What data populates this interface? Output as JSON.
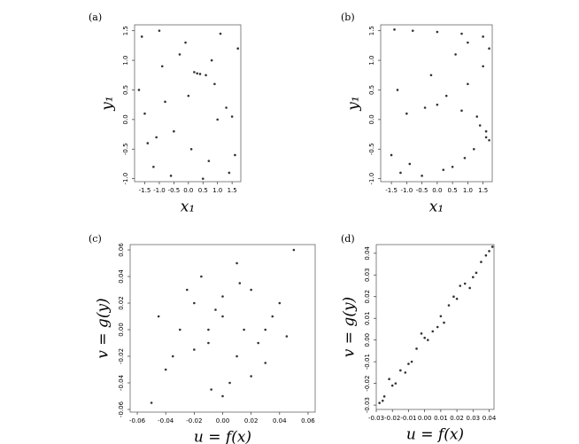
{
  "chart_data": [
    {
      "type": "scatter",
      "label": "(a)",
      "xlabel": "x₁",
      "ylabel": "y₁",
      "xlim": [
        -1.85,
        1.8
      ],
      "ylim": [
        -1.05,
        1.6
      ],
      "xticks": [
        -1.5,
        {
          "value": -1,
          "label": "-1.0"
        },
        -0.5,
        {
          "value": 0,
          "label": "0.0"
        },
        0.5,
        {
          "value": 1,
          "label": "1.0"
        },
        1.5
      ],
      "yticks": [
        {
          "value": -1,
          "label": "-1.0"
        },
        -0.5,
        {
          "value": 0,
          "label": "0.0"
        },
        0.5,
        {
          "value": 1,
          "label": "1.0"
        },
        1.5
      ],
      "color": "#333333",
      "x": [
        -1.6,
        -1.2,
        -0.8,
        -0.3,
        0.1,
        0.6,
        1.0,
        1.4,
        1.7,
        -1.7,
        -1.0,
        -0.5,
        0.2,
        0.5,
        0.9,
        1.3,
        -1.4,
        -0.1,
        0.4,
        1.6,
        -0.9,
        0.7,
        -1.5,
        0.0,
        1.1,
        -0.6,
        0.3,
        1.5,
        -1.1,
        0.8
      ],
      "y": [
        1.4,
        -0.8,
        0.3,
        1.1,
        -0.5,
        0.75,
        0.0,
        -0.9,
        1.2,
        0.5,
        1.5,
        -0.2,
        0.8,
        -1.0,
        0.6,
        0.2,
        -0.4,
        1.3,
        0.77,
        -0.6,
        0.9,
        -0.7,
        0.1,
        0.4,
        1.45,
        -0.95,
        0.78,
        0.05,
        -0.3,
        1.0
      ]
    },
    {
      "type": "scatter",
      "label": "(b)",
      "xlabel": "x₁",
      "ylabel": "y₁",
      "xlim": [
        -1.85,
        1.8
      ],
      "ylim": [
        -1.05,
        1.6
      ],
      "xticks": [
        -1.5,
        {
          "value": -1,
          "label": "-1.0"
        },
        -0.5,
        {
          "value": 0,
          "label": "0.0"
        },
        0.5,
        {
          "value": 1,
          "label": "1.0"
        },
        1.5
      ],
      "yticks": [
        {
          "value": -1,
          "label": "-1.0"
        },
        -0.5,
        {
          "value": 0,
          "label": "0.0"
        },
        0.5,
        {
          "value": 1,
          "label": "1.0"
        },
        1.5
      ],
      "color": "#333333",
      "x": [
        -1.4,
        -0.8,
        0.0,
        0.8,
        1.5,
        1.7,
        1.5,
        1.0,
        0.3,
        -0.4,
        1.6,
        1.2,
        0.5,
        -0.5,
        -1.2,
        1.7,
        1.4,
        0.8,
        0.0,
        -1.0,
        -1.5,
        1.0,
        0.6,
        -0.2,
        -1.3,
        1.6,
        0.9,
        0.2,
        -0.9,
        1.3
      ],
      "y": [
        1.52,
        1.5,
        1.48,
        1.45,
        1.4,
        1.2,
        0.9,
        0.6,
        0.4,
        0.2,
        -0.2,
        -0.5,
        -0.8,
        -0.95,
        -0.9,
        -0.35,
        -0.1,
        0.15,
        0.25,
        0.1,
        -0.6,
        1.3,
        1.1,
        0.75,
        0.5,
        -0.3,
        -0.65,
        -0.85,
        -0.75,
        0.05
      ]
    },
    {
      "type": "scatter",
      "label": "(c)",
      "xlabel": "u = f(x)",
      "ylabel": "v = g(y)",
      "xlim": [
        -0.065,
        0.065
      ],
      "ylim": [
        -0.062,
        0.064
      ],
      "xticks": [
        -0.06,
        -0.04,
        -0.02,
        {
          "value": 0,
          "label": "0.00"
        },
        0.02,
        0.04,
        0.06
      ],
      "yticks": [
        -0.06,
        -0.04,
        -0.02,
        {
          "value": 0,
          "label": "0.00"
        },
        0.02,
        0.04,
        0.06
      ],
      "color": "#333333",
      "x": [
        -0.03,
        -0.02,
        -0.01,
        0.0,
        0.01,
        0.02,
        0.03,
        -0.04,
        0.04,
        -0.015,
        0.005,
        0.015,
        -0.005,
        0.025,
        -0.025,
        0.0,
        0.01,
        -0.01,
        0.035,
        -0.035,
        0.02,
        -0.02,
        0.05,
        -0.05,
        0.0,
        0.012,
        -0.008,
        0.03,
        -0.045,
        0.045
      ],
      "y": [
        0.0,
        0.02,
        -0.01,
        0.01,
        -0.02,
        0.03,
        0.0,
        -0.03,
        0.02,
        0.04,
        -0.04,
        0.0,
        0.015,
        -0.01,
        0.03,
        -0.05,
        0.05,
        0.0,
        0.01,
        -0.02,
        -0.035,
        -0.015,
        0.06,
        -0.055,
        0.025,
        0.035,
        -0.045,
        -0.025,
        0.01,
        -0.005
      ]
    },
    {
      "type": "scatter",
      "label": "(d)",
      "xlabel": "u = f(x)",
      "ylabel": "v = g(y)",
      "xlim": [
        -0.03,
        0.043
      ],
      "ylim": [
        -0.032,
        0.044
      ],
      "xticks": [
        -0.03,
        -0.02,
        -0.01,
        {
          "value": 0,
          "label": "0.00"
        },
        0.01,
        0.02,
        0.03,
        0.04
      ],
      "yticks": [
        -0.03,
        -0.02,
        -0.01,
        {
          "value": 0,
          "label": "0.00"
        },
        0.01,
        0.02,
        0.03,
        0.04
      ],
      "color": "#333333",
      "x": [
        -0.028,
        -0.025,
        -0.02,
        -0.015,
        -0.01,
        -0.005,
        0.0,
        0.005,
        0.01,
        0.015,
        0.02,
        0.025,
        0.03,
        0.035,
        0.04,
        -0.022,
        -0.012,
        -0.002,
        0.008,
        0.018,
        0.028,
        0.038,
        -0.018,
        0.012,
        0.022,
        -0.008,
        0.032,
        0.002,
        -0.026,
        0.042
      ],
      "y": [
        -0.029,
        -0.026,
        -0.021,
        -0.014,
        -0.011,
        -0.004,
        0.001,
        0.004,
        0.011,
        0.016,
        0.019,
        0.026,
        0.029,
        0.036,
        0.041,
        -0.018,
        -0.015,
        0.003,
        0.006,
        0.02,
        0.024,
        0.039,
        -0.02,
        0.008,
        0.025,
        -0.01,
        0.031,
        0.0,
        -0.028,
        0.043
      ]
    }
  ]
}
